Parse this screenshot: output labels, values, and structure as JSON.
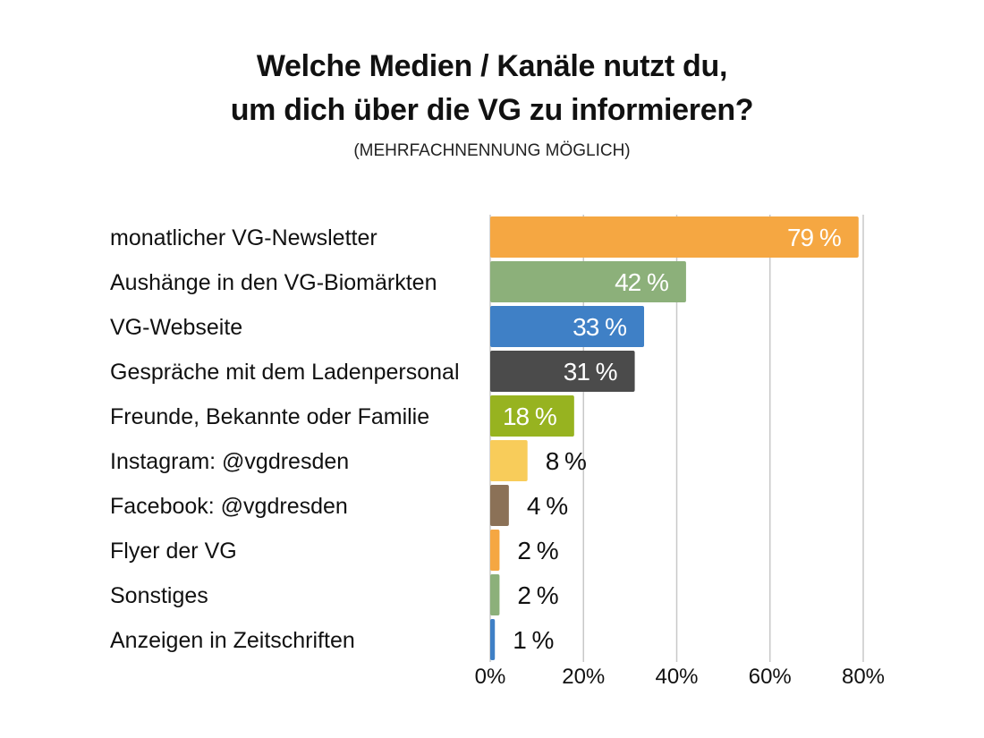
{
  "chart_data": {
    "type": "bar",
    "orientation": "horizontal",
    "title": [
      "Welche Medien / Kanäle nutzt du,",
      "um dich über die VG zu informieren?"
    ],
    "subtitle": "(MEHRFACHNENNUNG MÖGLICH)",
    "categories": [
      "monatlicher VG-Newsletter",
      "Aushänge in den VG-Biomärkten",
      "VG-Webseite",
      "Gespräche mit dem Ladenpersonal",
      "Freunde, Bekannte oder Familie",
      "Instagram: @vgdresden",
      "Facebook: @vgdresden",
      "Flyer der VG",
      "Sonstiges",
      "Anzeigen in Zeitschriften"
    ],
    "values": [
      79,
      42,
      33,
      31,
      18,
      8,
      4,
      2,
      2,
      1
    ],
    "value_labels": [
      "79 %",
      "42 %",
      "33 %",
      "31 %",
      "18 %",
      "8 %",
      "4 %",
      "2 %",
      "2 %",
      "1 %"
    ],
    "label_inside": [
      true,
      true,
      true,
      true,
      true,
      false,
      false,
      false,
      false,
      false
    ],
    "colors": [
      "#F5A742",
      "#8CB07A",
      "#3F80C6",
      "#4B4B4B",
      "#97B320",
      "#F8CC5A",
      "#8B7157",
      "#F5A742",
      "#8CB07A",
      "#3F80C6"
    ],
    "xlim": [
      0,
      80
    ],
    "xticks": [
      0,
      20,
      40,
      60,
      80
    ],
    "xtick_labels": [
      "0%",
      "20%",
      "40%",
      "60%",
      "80%"
    ],
    "grid": true,
    "legend": "none"
  }
}
